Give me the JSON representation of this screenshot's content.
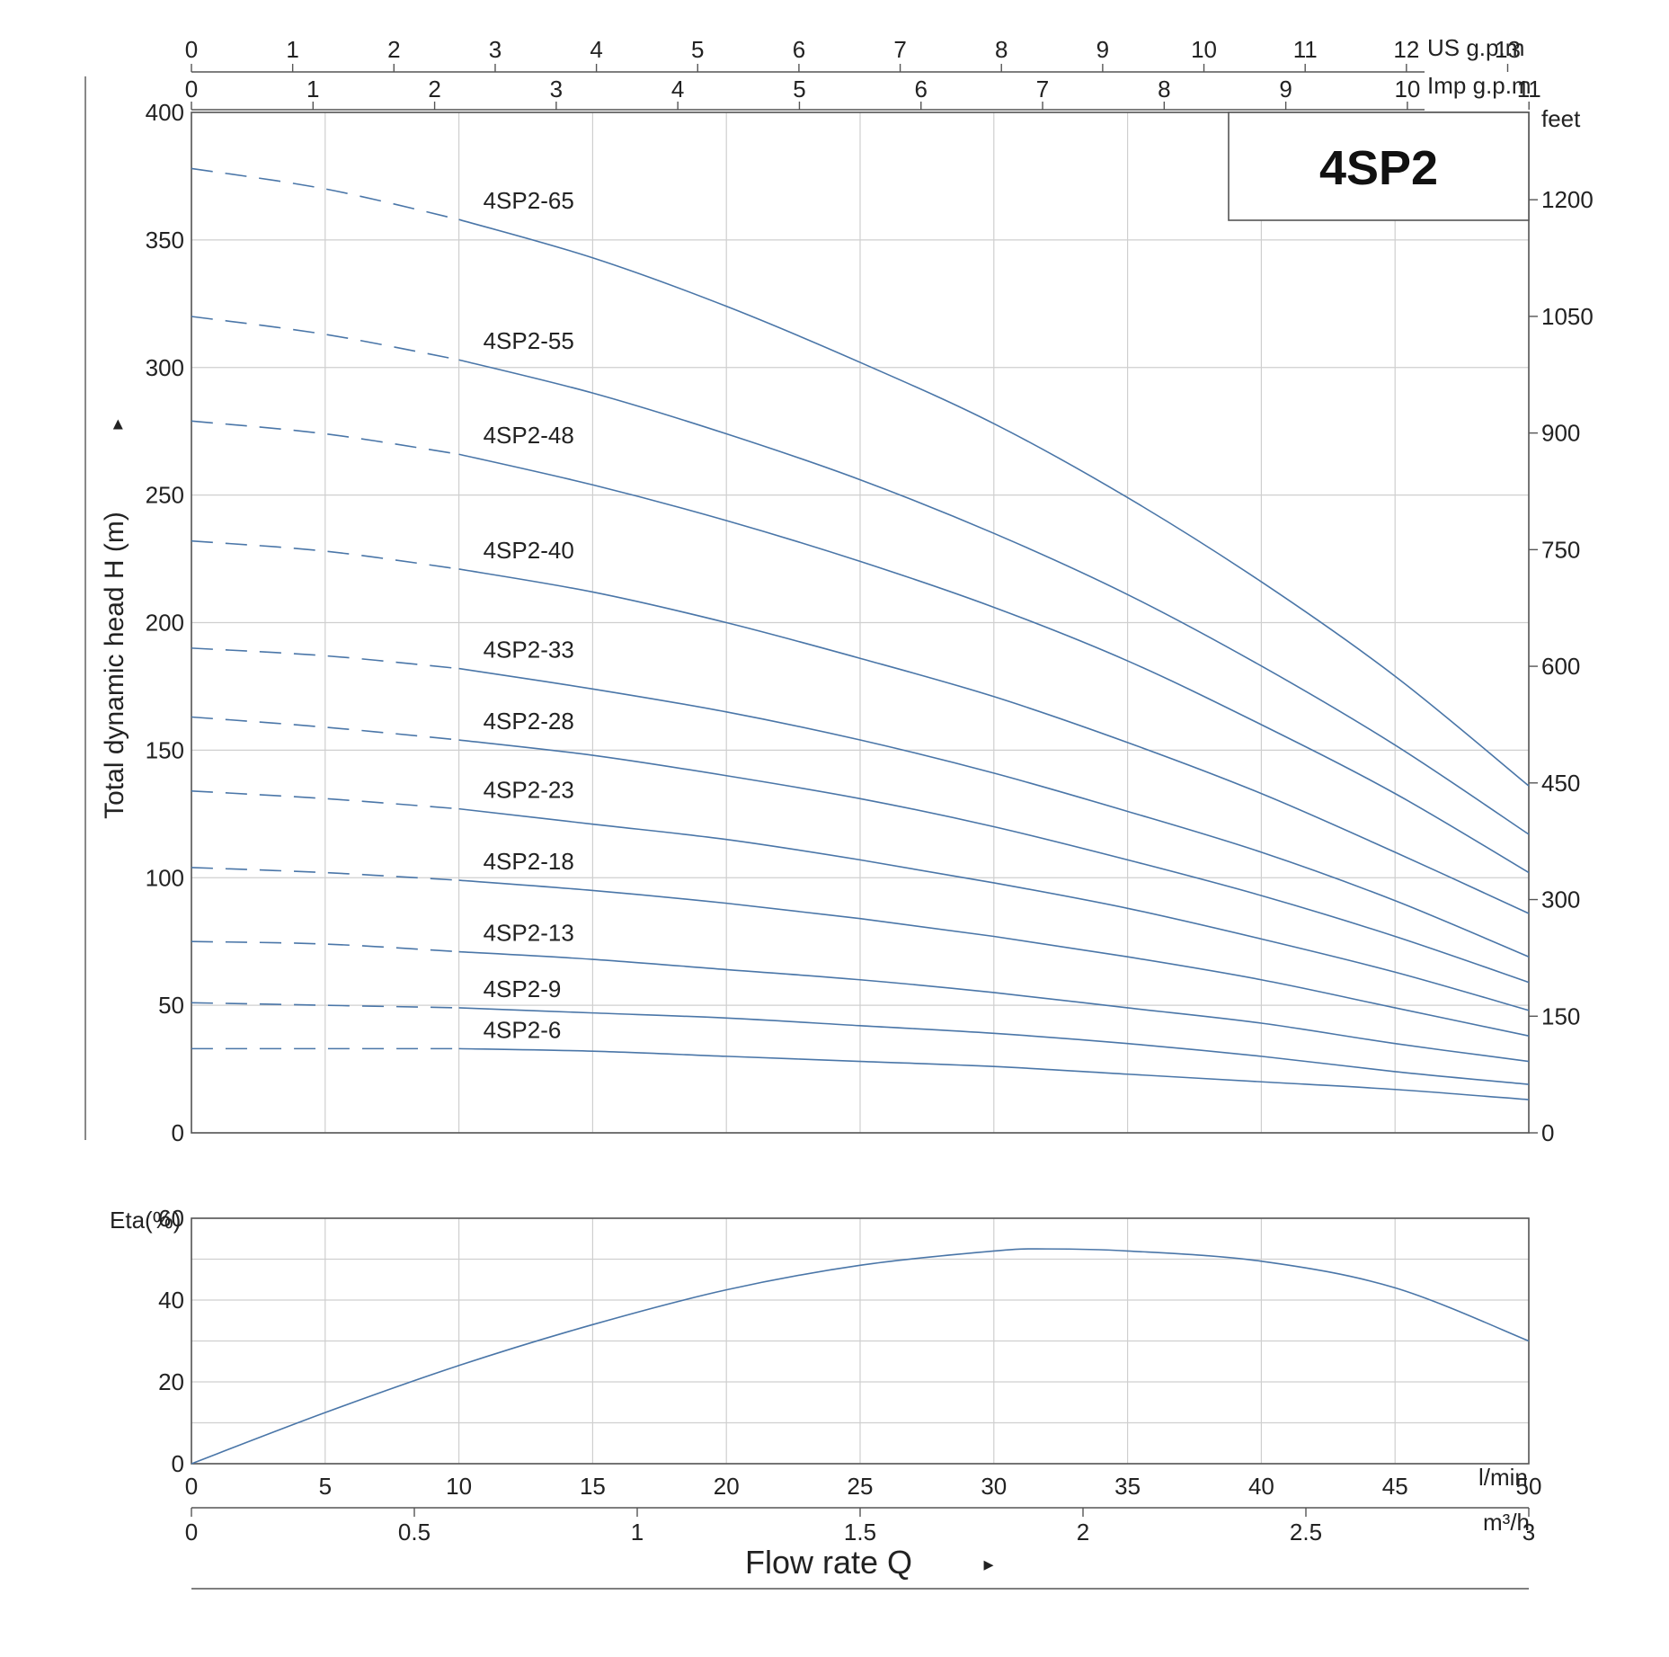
{
  "chart_data": [
    {
      "type": "line",
      "title": "4SP2",
      "ylabel": "Total dynamic head H (m)",
      "ylabel_arrow": "▸",
      "ylim": [
        0,
        400
      ],
      "xlim": [
        0,
        50
      ],
      "x_unit": "l/min",
      "y_ticks": [
        0,
        50,
        100,
        150,
        200,
        250,
        300,
        350,
        400
      ],
      "y2_label": "feet",
      "y2_ticks": [
        0,
        150,
        300,
        450,
        600,
        750,
        900,
        1050,
        1200
      ],
      "top_axis_us": {
        "unit": "US g.p.m",
        "ticks": [
          0,
          1,
          2,
          3,
          4,
          5,
          6,
          7,
          8,
          9,
          10,
          11,
          12,
          13
        ]
      },
      "top_axis_imp": {
        "unit": "Imp g.p.m",
        "ticks": [
          0,
          1,
          2,
          3,
          4,
          5,
          6,
          7,
          8,
          9,
          10,
          11
        ]
      },
      "grid": true,
      "dashed_region_x": [
        0,
        10
      ],
      "series": [
        {
          "name": "4SP2-65",
          "values": [
            [
              0,
              378
            ],
            [
              5,
              370
            ],
            [
              10,
              358
            ],
            [
              15,
              343
            ],
            [
              20,
              324
            ],
            [
              25,
              302
            ],
            [
              30,
              278
            ],
            [
              35,
              249
            ],
            [
              40,
              216
            ],
            [
              45,
              179
            ],
            [
              50,
              136
            ]
          ]
        },
        {
          "name": "4SP2-55",
          "values": [
            [
              0,
              320
            ],
            [
              5,
              313
            ],
            [
              10,
              303
            ],
            [
              15,
              290
            ],
            [
              20,
              274
            ],
            [
              25,
              256
            ],
            [
              30,
              235
            ],
            [
              35,
              211
            ],
            [
              40,
              183
            ],
            [
              45,
              152
            ],
            [
              50,
              117
            ]
          ]
        },
        {
          "name": "4SP2-48",
          "values": [
            [
              0,
              279
            ],
            [
              5,
              274
            ],
            [
              10,
              266
            ],
            [
              15,
              254
            ],
            [
              20,
              240
            ],
            [
              25,
              224
            ],
            [
              30,
              206
            ],
            [
              35,
              185
            ],
            [
              40,
              160
            ],
            [
              45,
              133
            ],
            [
              50,
              102
            ]
          ]
        },
        {
          "name": "4SP2-40",
          "values": [
            [
              0,
              232
            ],
            [
              5,
              228
            ],
            [
              10,
              221
            ],
            [
              15,
              212
            ],
            [
              20,
              200
            ],
            [
              25,
              186
            ],
            [
              30,
              171
            ],
            [
              35,
              153
            ],
            [
              40,
              133
            ],
            [
              45,
              110
            ],
            [
              50,
              86
            ]
          ]
        },
        {
          "name": "4SP2-33",
          "values": [
            [
              0,
              190
            ],
            [
              5,
              187
            ],
            [
              10,
              182
            ],
            [
              15,
              174
            ],
            [
              20,
              165
            ],
            [
              25,
              154
            ],
            [
              30,
              141
            ],
            [
              35,
              126
            ],
            [
              40,
              110
            ],
            [
              45,
              91
            ],
            [
              50,
              69
            ]
          ]
        },
        {
          "name": "4SP2-28",
          "values": [
            [
              0,
              163
            ],
            [
              5,
              159
            ],
            [
              10,
              154
            ],
            [
              15,
              148
            ],
            [
              20,
              140
            ],
            [
              25,
              131
            ],
            [
              30,
              120
            ],
            [
              35,
              107
            ],
            [
              40,
              93
            ],
            [
              45,
              77
            ],
            [
              50,
              59
            ]
          ]
        },
        {
          "name": "4SP2-23",
          "values": [
            [
              0,
              134
            ],
            [
              5,
              131
            ],
            [
              10,
              127
            ],
            [
              15,
              121
            ],
            [
              20,
              115
            ],
            [
              25,
              107
            ],
            [
              30,
              98
            ],
            [
              35,
              88
            ],
            [
              40,
              76
            ],
            [
              45,
              63
            ],
            [
              50,
              48
            ]
          ]
        },
        {
          "name": "4SP2-18",
          "values": [
            [
              0,
              104
            ],
            [
              5,
              102
            ],
            [
              10,
              99
            ],
            [
              15,
              95
            ],
            [
              20,
              90
            ],
            [
              25,
              84
            ],
            [
              30,
              77
            ],
            [
              35,
              69
            ],
            [
              40,
              60
            ],
            [
              45,
              49
            ],
            [
              50,
              38
            ]
          ]
        },
        {
          "name": "4SP2-13",
          "values": [
            [
              0,
              75
            ],
            [
              5,
              74
            ],
            [
              10,
              71
            ],
            [
              15,
              68
            ],
            [
              20,
              64
            ],
            [
              25,
              60
            ],
            [
              30,
              55
            ],
            [
              35,
              49
            ],
            [
              40,
              43
            ],
            [
              45,
              35
            ],
            [
              50,
              28
            ]
          ]
        },
        {
          "name": "4SP2-9",
          "values": [
            [
              0,
              51
            ],
            [
              5,
              50
            ],
            [
              10,
              49
            ],
            [
              15,
              47
            ],
            [
              20,
              45
            ],
            [
              25,
              42
            ],
            [
              30,
              39
            ],
            [
              35,
              35
            ],
            [
              40,
              30
            ],
            [
              45,
              24
            ],
            [
              50,
              19
            ]
          ]
        },
        {
          "name": "4SP2-6",
          "values": [
            [
              0,
              33
            ],
            [
              5,
              33
            ],
            [
              10,
              33
            ],
            [
              15,
              32
            ],
            [
              20,
              30
            ],
            [
              25,
              28
            ],
            [
              30,
              26
            ],
            [
              35,
              23
            ],
            [
              40,
              20
            ],
            [
              45,
              17
            ],
            [
              50,
              13
            ]
          ]
        }
      ]
    },
    {
      "type": "line",
      "ylabel": "Eta(%)",
      "ylim": [
        0,
        60
      ],
      "y_ticks": [
        0,
        20,
        40,
        60
      ],
      "xlim": [
        0,
        50
      ],
      "x_ticks": [
        0,
        5,
        10,
        15,
        20,
        25,
        30,
        35,
        40,
        45,
        50
      ],
      "x_unit": "l/min",
      "x2_ticks": [
        "0",
        "0.5",
        "1",
        "1.5",
        "2",
        "2.5",
        "3"
      ],
      "x2_unit": "m³/h",
      "xlabel": "Flow rate Q",
      "xlabel_arrow": "▸",
      "grid": true,
      "series": [
        {
          "values": [
            [
              0,
              0
            ],
            [
              5,
              12.5
            ],
            [
              10,
              24
            ],
            [
              15,
              34
            ],
            [
              20,
              42.5
            ],
            [
              25,
              48.5
            ],
            [
              30,
              52
            ],
            [
              32,
              52.5
            ],
            [
              35,
              52
            ],
            [
              40,
              49.5
            ],
            [
              45,
              43
            ],
            [
              50,
              30
            ]
          ]
        }
      ]
    }
  ]
}
